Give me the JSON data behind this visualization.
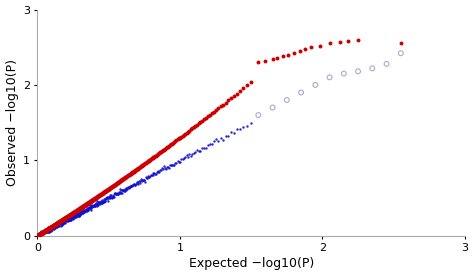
{
  "title": "",
  "xlabel": "Expected −log10(P)",
  "ylabel": "Observed −log10(P)",
  "xlim": [
    0,
    3
  ],
  "ylim": [
    0,
    3
  ],
  "xticks": [
    0,
    1,
    2,
    3
  ],
  "yticks": [
    0,
    1,
    2,
    3
  ],
  "diagonal_color": "#1111cc",
  "red_color": "#cc0000",
  "gray_color": "#aaaacc",
  "bg_color": "#ffffff",
  "spine_color": "#aaaaaa",
  "dot_size_blue": 3,
  "dot_size_red": 8,
  "dot_size_gray": 8,
  "n_points": 500,
  "red_high_expected": [
    1.55,
    1.6,
    1.65,
    1.68,
    1.72,
    1.76,
    1.8,
    1.84,
    1.88,
    1.92,
    1.98,
    2.05,
    2.12,
    2.18,
    2.25,
    2.55
  ],
  "red_high_observed": [
    2.3,
    2.32,
    2.35,
    2.36,
    2.38,
    2.4,
    2.43,
    2.45,
    2.47,
    2.5,
    2.52,
    2.55,
    2.57,
    2.58,
    2.6,
    2.55
  ],
  "gray_expected": [
    1.55,
    1.65,
    1.75,
    1.85,
    1.95,
    2.05,
    2.15,
    2.25,
    2.35,
    2.45,
    2.55
  ],
  "gray_observed": [
    1.6,
    1.7,
    1.8,
    1.9,
    2.0,
    2.1,
    2.15,
    2.18,
    2.22,
    2.28,
    2.42
  ]
}
